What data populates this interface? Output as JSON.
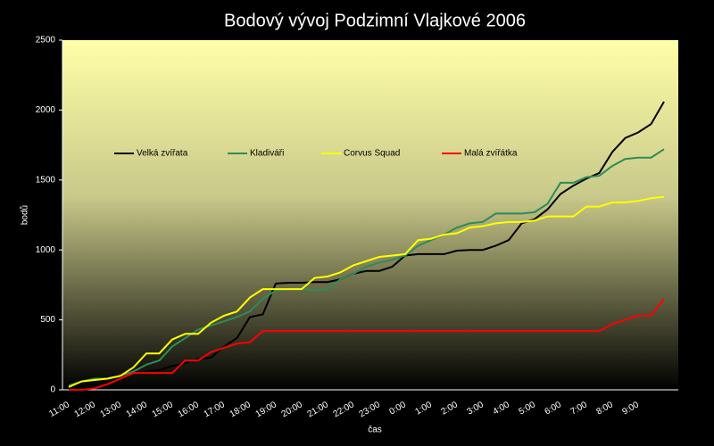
{
  "chart_data": {
    "type": "line",
    "title": "Bodový vývoj Podzimní Vlajkové 2006",
    "x_label": "čas",
    "y_label": "bodů",
    "categories": [
      "11:00",
      null,
      "12:00",
      null,
      "13:00",
      null,
      "14:00",
      null,
      "15:00",
      null,
      "16:00",
      null,
      "17:00",
      null,
      "18:00",
      null,
      "19:00",
      null,
      "20:00",
      null,
      "21:00",
      null,
      "22:00",
      null,
      "23:00",
      null,
      "0:00",
      null,
      "1:00",
      null,
      "2:00",
      null,
      "3:00",
      null,
      "4:00",
      null,
      "5:00",
      null,
      "6:00",
      null,
      "7:00",
      null,
      "8:00",
      null,
      "9:00",
      null,
      null
    ],
    "series": [
      {
        "name": "Velká zvířata",
        "color": "#000000",
        "values": [
          10,
          60,
          75,
          80,
          100,
          120,
          130,
          140,
          170,
          190,
          220,
          230,
          310,
          370,
          520,
          540,
          760,
          765,
          765,
          770,
          770,
          790,
          830,
          850,
          850,
          880,
          960,
          970,
          970,
          970,
          995,
          1000,
          1000,
          1030,
          1070,
          1190,
          1220,
          1290,
          1400,
          1460,
          1510,
          1550,
          1700,
          1800,
          1840,
          1900,
          2060
        ]
      },
      {
        "name": "Kladiváři",
        "color": "#2e8b57",
        "values": [
          30,
          60,
          80,
          80,
          100,
          130,
          180,
          210,
          310,
          370,
          430,
          460,
          490,
          520,
          560,
          650,
          710,
          720,
          720,
          710,
          720,
          790,
          830,
          880,
          910,
          930,
          960,
          1030,
          1070,
          1110,
          1160,
          1190,
          1200,
          1260,
          1260,
          1260,
          1270,
          1330,
          1480,
          1480,
          1520,
          1530,
          1600,
          1650,
          1660,
          1660,
          1720
        ]
      },
      {
        "name": "Corvus Squad",
        "color": "#ffff00",
        "values": [
          20,
          60,
          70,
          80,
          100,
          160,
          260,
          260,
          360,
          400,
          400,
          480,
          530,
          560,
          660,
          720,
          720,
          720,
          720,
          800,
          810,
          840,
          890,
          920,
          950,
          960,
          970,
          1070,
          1080,
          1110,
          1120,
          1160,
          1170,
          1190,
          1200,
          1200,
          1210,
          1240,
          1240,
          1240,
          1310,
          1310,
          1340,
          1340,
          1350,
          1370,
          1380
        ]
      },
      {
        "name": "Malá zvířátka",
        "color": "#ff0000",
        "values": [
          0,
          0,
          10,
          40,
          80,
          120,
          120,
          120,
          120,
          210,
          210,
          270,
          300,
          330,
          340,
          420,
          420,
          420,
          420,
          420,
          420,
          420,
          420,
          420,
          420,
          420,
          420,
          420,
          420,
          420,
          420,
          420,
          420,
          420,
          420,
          420,
          420,
          420,
          420,
          420,
          420,
          420,
          470,
          500,
          530,
          530,
          650
        ]
      }
    ],
    "ylim": [
      0,
      2500
    ],
    "yticks": [
      0,
      500,
      1000,
      1500,
      2000,
      2500
    ]
  }
}
